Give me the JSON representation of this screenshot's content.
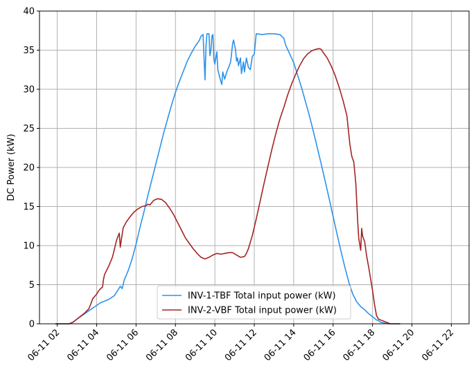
{
  "chart_data": {
    "type": "line",
    "title": "",
    "xlabel": "",
    "ylabel": "DC Power (kW)",
    "ylim": [
      0,
      40
    ],
    "xlim_hours": [
      1.1,
      22.9
    ],
    "yticks": [
      0,
      5,
      10,
      15,
      20,
      25,
      30,
      35,
      40
    ],
    "xticks": [
      {
        "hour": 2,
        "label": "06-11 02"
      },
      {
        "hour": 4,
        "label": "06-11 04"
      },
      {
        "hour": 6,
        "label": "06-11 06"
      },
      {
        "hour": 8,
        "label": "06-11 08"
      },
      {
        "hour": 10,
        "label": "06-11 10"
      },
      {
        "hour": 12,
        "label": "06-11 12"
      },
      {
        "hour": 14,
        "label": "06-11 14"
      },
      {
        "hour": 16,
        "label": "06-11 16"
      },
      {
        "hour": 18,
        "label": "06-11 18"
      },
      {
        "hour": 20,
        "label": "06-11 20"
      },
      {
        "hour": 22,
        "label": "06-11 22"
      }
    ],
    "grid": true,
    "legend": "bottom-center",
    "series": [
      {
        "name": "INV-1-TBF Total input power (kW)",
        "color": "#2a92eb",
        "points": [
          [
            1.9,
            0
          ],
          [
            2.6,
            0
          ],
          [
            2.8,
            0.2
          ],
          [
            3.0,
            0.6
          ],
          [
            3.4,
            1.3
          ],
          [
            3.8,
            2.0
          ],
          [
            4.2,
            2.7
          ],
          [
            4.6,
            3.1
          ],
          [
            4.9,
            3.6
          ],
          [
            5.1,
            4.4
          ],
          [
            5.2,
            4.8
          ],
          [
            5.3,
            4.5
          ],
          [
            5.4,
            5.6
          ],
          [
            5.6,
            6.8
          ],
          [
            5.8,
            8.3
          ],
          [
            6.0,
            10.2
          ],
          [
            6.2,
            12.3
          ],
          [
            6.4,
            14.3
          ],
          [
            6.6,
            16.4
          ],
          [
            6.8,
            18.4
          ],
          [
            7.0,
            20.4
          ],
          [
            7.2,
            22.4
          ],
          [
            7.4,
            24.4
          ],
          [
            7.6,
            26.2
          ],
          [
            7.8,
            28.0
          ],
          [
            8.0,
            29.6
          ],
          [
            8.2,
            31.0
          ],
          [
            8.4,
            32.3
          ],
          [
            8.6,
            33.6
          ],
          [
            8.8,
            34.6
          ],
          [
            9.0,
            35.5
          ],
          [
            9.2,
            36.2
          ],
          [
            9.3,
            36.8
          ],
          [
            9.4,
            37.0
          ],
          [
            9.45,
            34.0
          ],
          [
            9.5,
            31.2
          ],
          [
            9.55,
            35.5
          ],
          [
            9.6,
            37.1
          ],
          [
            9.7,
            37.1
          ],
          [
            9.75,
            34.3
          ],
          [
            9.8,
            35.0
          ],
          [
            9.85,
            36.8
          ],
          [
            9.9,
            37.0
          ],
          [
            9.95,
            33.8
          ],
          [
            10.0,
            33.2
          ],
          [
            10.1,
            34.8
          ],
          [
            10.15,
            32.5
          ],
          [
            10.25,
            31.5
          ],
          [
            10.35,
            30.6
          ],
          [
            10.4,
            32.2
          ],
          [
            10.5,
            31.3
          ],
          [
            10.6,
            32.2
          ],
          [
            10.7,
            32.8
          ],
          [
            10.8,
            33.5
          ],
          [
            10.9,
            35.8
          ],
          [
            10.95,
            36.3
          ],
          [
            11.05,
            35.0
          ],
          [
            11.1,
            33.6
          ],
          [
            11.15,
            34.0
          ],
          [
            11.2,
            33.0
          ],
          [
            11.3,
            34.0
          ],
          [
            11.35,
            32.0
          ],
          [
            11.45,
            33.5
          ],
          [
            11.5,
            32.2
          ],
          [
            11.6,
            34.0
          ],
          [
            11.7,
            32.8
          ],
          [
            11.8,
            32.5
          ],
          [
            11.9,
            34.2
          ],
          [
            12.0,
            34.5
          ],
          [
            12.1,
            37.1
          ],
          [
            12.4,
            37.0
          ],
          [
            12.7,
            37.1
          ],
          [
            13.0,
            37.1
          ],
          [
            13.3,
            37.0
          ],
          [
            13.5,
            36.5
          ],
          [
            13.6,
            35.6
          ],
          [
            13.8,
            34.5
          ],
          [
            14.0,
            33.4
          ],
          [
            14.2,
            31.8
          ],
          [
            14.4,
            30.2
          ],
          [
            14.6,
            28.4
          ],
          [
            14.8,
            26.6
          ],
          [
            15.0,
            24.6
          ],
          [
            15.2,
            22.5
          ],
          [
            15.4,
            20.4
          ],
          [
            15.6,
            18.2
          ],
          [
            15.8,
            16.0
          ],
          [
            16.0,
            13.7
          ],
          [
            16.2,
            11.5
          ],
          [
            16.4,
            9.3
          ],
          [
            16.6,
            7.2
          ],
          [
            16.8,
            5.3
          ],
          [
            17.0,
            3.8
          ],
          [
            17.2,
            2.8
          ],
          [
            17.4,
            2.2
          ],
          [
            17.6,
            1.8
          ],
          [
            17.8,
            1.3
          ],
          [
            18.0,
            0.9
          ],
          [
            18.2,
            0.5
          ],
          [
            18.3,
            0.4
          ],
          [
            18.4,
            0.2
          ],
          [
            18.6,
            0.1
          ],
          [
            18.8,
            0
          ],
          [
            19.4,
            0
          ]
        ]
      },
      {
        "name": "INV-2-VBF Total input power (kW)",
        "color": "#a42323",
        "points": [
          [
            1.9,
            0
          ],
          [
            2.6,
            0
          ],
          [
            2.8,
            0.2
          ],
          [
            3.0,
            0.6
          ],
          [
            3.2,
            1.0
          ],
          [
            3.4,
            1.4
          ],
          [
            3.6,
            1.9
          ],
          [
            3.7,
            2.5
          ],
          [
            3.8,
            3.2
          ],
          [
            4.0,
            3.8
          ],
          [
            4.1,
            4.2
          ],
          [
            4.2,
            4.5
          ],
          [
            4.3,
            4.7
          ],
          [
            4.35,
            5.7
          ],
          [
            4.4,
            6.3
          ],
          [
            4.6,
            7.3
          ],
          [
            4.8,
            8.5
          ],
          [
            4.9,
            9.5
          ],
          [
            5.0,
            10.6
          ],
          [
            5.1,
            11.3
          ],
          [
            5.15,
            11.6
          ],
          [
            5.2,
            9.8
          ],
          [
            5.3,
            11.5
          ],
          [
            5.35,
            12.3
          ],
          [
            5.5,
            13.0
          ],
          [
            5.7,
            13.7
          ],
          [
            5.9,
            14.3
          ],
          [
            6.1,
            14.7
          ],
          [
            6.3,
            15.0
          ],
          [
            6.5,
            15.1
          ],
          [
            6.6,
            15.3
          ],
          [
            6.7,
            15.2
          ],
          [
            6.8,
            15.5
          ],
          [
            6.9,
            15.8
          ],
          [
            7.1,
            16.0
          ],
          [
            7.3,
            15.9
          ],
          [
            7.5,
            15.5
          ],
          [
            7.7,
            14.8
          ],
          [
            7.9,
            14.0
          ],
          [
            8.1,
            13.0
          ],
          [
            8.3,
            12.0
          ],
          [
            8.5,
            11.0
          ],
          [
            8.7,
            10.3
          ],
          [
            8.9,
            9.6
          ],
          [
            9.1,
            9.0
          ],
          [
            9.3,
            8.5
          ],
          [
            9.5,
            8.3
          ],
          [
            9.7,
            8.5
          ],
          [
            9.9,
            8.8
          ],
          [
            10.1,
            9.0
          ],
          [
            10.3,
            8.9
          ],
          [
            10.5,
            9.0
          ],
          [
            10.7,
            9.1
          ],
          [
            10.9,
            9.1
          ],
          [
            11.1,
            8.8
          ],
          [
            11.3,
            8.5
          ],
          [
            11.5,
            8.6
          ],
          [
            11.6,
            9.0
          ],
          [
            11.7,
            9.6
          ],
          [
            11.9,
            11.3
          ],
          [
            12.1,
            13.4
          ],
          [
            12.3,
            15.7
          ],
          [
            12.5,
            18.0
          ],
          [
            12.7,
            20.2
          ],
          [
            12.9,
            22.4
          ],
          [
            13.1,
            24.4
          ],
          [
            13.3,
            26.2
          ],
          [
            13.5,
            27.7
          ],
          [
            13.7,
            29.3
          ],
          [
            13.9,
            30.7
          ],
          [
            14.1,
            31.9
          ],
          [
            14.3,
            33.0
          ],
          [
            14.5,
            33.9
          ],
          [
            14.7,
            34.5
          ],
          [
            14.9,
            34.9
          ],
          [
            15.1,
            35.1
          ],
          [
            15.3,
            35.2
          ],
          [
            15.4,
            35.1
          ],
          [
            15.5,
            34.7
          ],
          [
            15.7,
            34.0
          ],
          [
            15.9,
            33.0
          ],
          [
            16.1,
            31.8
          ],
          [
            16.3,
            30.3
          ],
          [
            16.5,
            28.6
          ],
          [
            16.7,
            26.6
          ],
          [
            16.85,
            23.0
          ],
          [
            16.95,
            21.4
          ],
          [
            17.05,
            20.7
          ],
          [
            17.15,
            18.0
          ],
          [
            17.25,
            13.0
          ],
          [
            17.3,
            11.0
          ],
          [
            17.4,
            9.4
          ],
          [
            17.45,
            12.2
          ],
          [
            17.5,
            11.2
          ],
          [
            17.6,
            10.5
          ],
          [
            17.7,
            8.7
          ],
          [
            17.8,
            7.3
          ],
          [
            17.9,
            5.8
          ],
          [
            18.0,
            4.3
          ],
          [
            18.1,
            2.5
          ],
          [
            18.2,
            1.1
          ],
          [
            18.3,
            0.6
          ],
          [
            18.5,
            0.4
          ],
          [
            18.7,
            0.2
          ],
          [
            18.9,
            0
          ],
          [
            19.4,
            0
          ]
        ]
      }
    ]
  }
}
